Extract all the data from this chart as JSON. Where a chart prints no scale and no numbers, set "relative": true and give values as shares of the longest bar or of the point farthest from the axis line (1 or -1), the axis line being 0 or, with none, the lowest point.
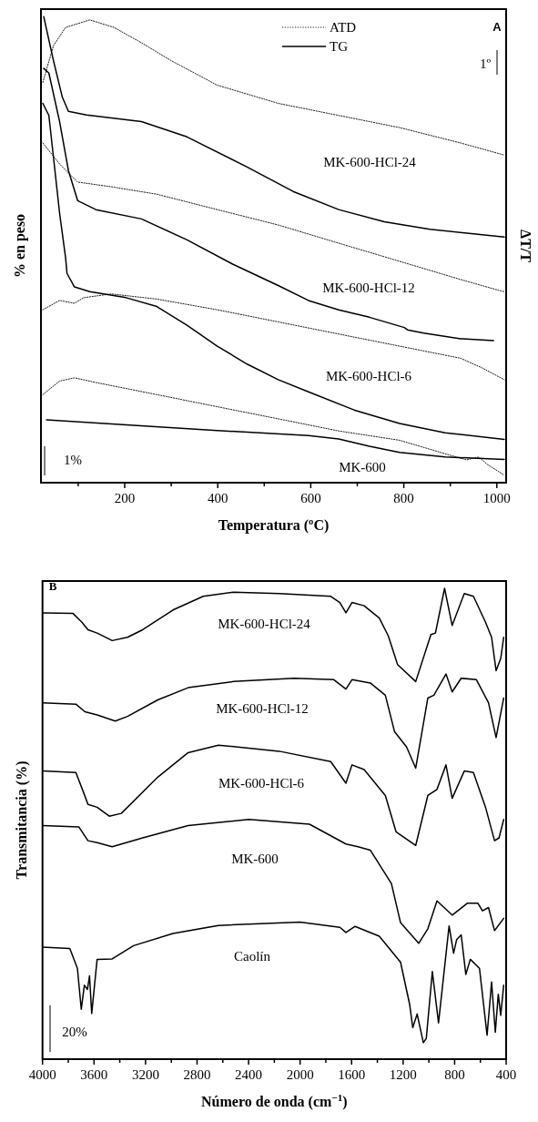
{
  "chart_data": [
    {
      "type": "line",
      "xlabel": "Temperatura (ºC)",
      "ylabel": "% en peso",
      "y2label": "ΔT/T",
      "relative": true,
      "legend": "top",
      "xlim": [
        20,
        1020
      ],
      "xticks": [
        {
          "value": 100,
          "label": null
        },
        200,
        {
          "value": 300,
          "label": null
        },
        400,
        {
          "value": 500,
          "label": null
        },
        600,
        {
          "value": 700,
          "label": null
        },
        800,
        {
          "value": 900,
          "label": null
        },
        1000
      ],
      "series": [
        {
          "name": "ATD",
          "color": "#000000",
          "line_style": "dotted",
          "x": [
            24,
            47,
            73,
            125,
            177,
            236,
            301,
            399,
            530,
            660,
            791,
            922,
            1016
          ],
          "values": [
            0.859,
            0.938,
            0.977,
            0.993,
            0.977,
            0.944,
            0.905,
            0.853,
            0.814,
            0.788,
            0.762,
            0.729,
            0.703
          ]
        },
        {
          "name": "TG",
          "color": "#000000",
          "line_style": "solid",
          "x": [
            26,
            47,
            66,
            79,
            118,
            236,
            334,
            464,
            562,
            660,
            758,
            856,
            1016
          ],
          "values": [
            1.0,
            0.905,
            0.827,
            0.797,
            0.789,
            0.775,
            0.742,
            0.677,
            0.625,
            0.586,
            0.56,
            0.544,
            0.527
          ]
        },
        {
          "color": "#000000",
          "line_style": "dotted",
          "x": [
            24,
            60,
            99,
            171,
            269,
            399,
            530,
            660,
            791,
            922,
            1003,
            1016
          ],
          "values": [
            0.729,
            0.684,
            0.645,
            0.635,
            0.619,
            0.586,
            0.553,
            0.514,
            0.475,
            0.436,
            0.413,
            0.41
          ]
        },
        {
          "color": "#000000",
          "line_style": "solid",
          "x": [
            26,
            37,
            60,
            79,
            99,
            138,
            236,
            334,
            432,
            530,
            595,
            660,
            726,
            801,
            808,
            843,
            922,
            993
          ],
          "values": [
            0.889,
            0.879,
            0.775,
            0.67,
            0.605,
            0.586,
            0.566,
            0.521,
            0.469,
            0.423,
            0.391,
            0.371,
            0.355,
            0.333,
            0.328,
            0.321,
            0.309,
            0.305
          ]
        },
        {
          "color": "#000000",
          "line_style": "dotted",
          "x": [
            24,
            60,
            92,
            112,
            171,
            269,
            399,
            530,
            660,
            791,
            922,
            967,
            1016
          ],
          "values": [
            0.371,
            0.391,
            0.385,
            0.397,
            0.405,
            0.394,
            0.371,
            0.345,
            0.319,
            0.293,
            0.267,
            0.247,
            0.221
          ]
        },
        {
          "color": "#000000",
          "line_style": "solid",
          "x": [
            24,
            37,
            60,
            73,
            76,
            92,
            125,
            203,
            269,
            334,
            399,
            464,
            530,
            595,
            693,
            791,
            889,
            1016
          ],
          "values": [
            0.814,
            0.788,
            0.579,
            0.482,
            0.449,
            0.42,
            0.41,
            0.397,
            0.378,
            0.338,
            0.293,
            0.254,
            0.221,
            0.195,
            0.156,
            0.127,
            0.107,
            0.093
          ]
        },
        {
          "color": "#000000",
          "line_style": "dotted",
          "x": [
            24,
            60,
            92,
            138,
            269,
            399,
            530,
            660,
            791,
            889,
            935,
            961,
            980,
            1016
          ],
          "values": [
            0.189,
            0.218,
            0.225,
            0.215,
            0.189,
            0.163,
            0.137,
            0.111,
            0.091,
            0.062,
            0.049,
            0.055,
            0.039,
            0.016
          ]
        },
        {
          "color": "#000000",
          "line_style": "solid",
          "x": [
            32,
            203,
            399,
            595,
            660,
            726,
            791,
            889,
            1016
          ],
          "values": [
            0.135,
            0.124,
            0.112,
            0.101,
            0.094,
            0.078,
            0.065,
            0.055,
            0.05
          ]
        }
      ],
      "annotations": [
        "A",
        "1º",
        "MK-600-HCl-24",
        "MK-600-HCl-12",
        "MK-600-HCl-6",
        "MK-600",
        "1%"
      ]
    },
    {
      "type": "line",
      "xlabel": "Número de onda (cm$^{−1}$)",
      "ylabel": "Transmitancia (%)",
      "relative": true,
      "xlim": [
        4000,
        400
      ],
      "xticks": [
        4000,
        {
          "value": 3800,
          "label": null
        },
        3600,
        {
          "value": 3400,
          "label": null
        },
        3200,
        {
          "value": 3000,
          "label": null
        },
        2800,
        {
          "value": 2600,
          "label": null
        },
        2400,
        {
          "value": 2200,
          "label": null
        },
        2000,
        {
          "value": 1800,
          "label": null
        },
        1600,
        {
          "value": 1400,
          "label": null
        },
        1200,
        {
          "value": 1000,
          "label": null
        },
        800,
        {
          "value": 600,
          "label": null
        },
        400
      ],
      "series": [
        {
          "color": "#000000",
          "x": [
            4000,
            3765,
            3694,
            3647,
            3576,
            3459,
            3340,
            3222,
            2987,
            2752,
            2516,
            2162,
            1762,
            1691,
            1644,
            1597,
            1503,
            1385,
            1315,
            1243,
            1102,
            984,
            949,
            878,
            819,
            725,
            654,
            560,
            513,
            478,
            442,
            419
          ],
          "values": [
            0.948,
            0.947,
            0.928,
            0.912,
            0.905,
            0.889,
            0.896,
            0.912,
            0.954,
            0.983,
            0.992,
            0.989,
            0.983,
            0.97,
            0.948,
            0.97,
            0.963,
            0.937,
            0.899,
            0.838,
            0.802,
            0.902,
            0.905,
            1.0,
            0.921,
            0.989,
            0.983,
            0.928,
            0.896,
            0.825,
            0.851,
            0.896
          ]
        },
        {
          "color": "#000000",
          "x": [
            4000,
            3741,
            3671,
            3576,
            3435,
            3340,
            3105,
            2869,
            2516,
            2045,
            1738,
            1644,
            1597,
            1455,
            1338,
            1267,
            1173,
            1102,
            1008,
            961,
            867,
            819,
            749,
            631,
            537,
            478,
            419
          ],
          "values": [
            0.757,
            0.754,
            0.738,
            0.731,
            0.718,
            0.728,
            0.763,
            0.789,
            0.802,
            0.809,
            0.806,
            0.786,
            0.806,
            0.799,
            0.773,
            0.696,
            0.663,
            0.618,
            0.767,
            0.773,
            0.818,
            0.78,
            0.809,
            0.806,
            0.757,
            0.683,
            0.767
          ]
        },
        {
          "color": "#000000",
          "x": [
            4000,
            3741,
            3682,
            3647,
            3576,
            3482,
            3388,
            3105,
            2869,
            2634,
            2162,
            1762,
            1644,
            1597,
            1503,
            1338,
            1255,
            1102,
            1008,
            937,
            867,
            819,
            725,
            654,
            560,
            490,
            455,
            419
          ],
          "values": [
            0.612,
            0.609,
            0.567,
            0.541,
            0.535,
            0.516,
            0.522,
            0.599,
            0.651,
            0.667,
            0.654,
            0.632,
            0.586,
            0.625,
            0.615,
            0.56,
            0.483,
            0.454,
            0.56,
            0.573,
            0.625,
            0.554,
            0.612,
            0.609,
            0.535,
            0.464,
            0.47,
            0.509
          ]
        },
        {
          "color": "#000000",
          "x": [
            4000,
            3717,
            3647,
            3576,
            3459,
            3222,
            2869,
            2398,
            1927,
            1644,
            1550,
            1455,
            1291,
            1220,
            1079,
            1008,
            937,
            819,
            702,
            619,
            584,
            537,
            490,
            419
          ],
          "values": [
            0.496,
            0.493,
            0.464,
            0.46,
            0.451,
            0.47,
            0.496,
            0.509,
            0.499,
            0.457,
            0.451,
            0.444,
            0.373,
            0.29,
            0.246,
            0.277,
            0.336,
            0.306,
            0.331,
            0.331,
            0.315,
            0.322,
            0.273,
            0.299
          ]
        },
        {
          "color": "#000000",
          "x": [
            4000,
            3788,
            3729,
            3699,
            3675,
            3651,
            3635,
            3618,
            3576,
            3459,
            3293,
            2987,
            2634,
            2000,
            1691,
            1644,
            1573,
            1385,
            1220,
            1149,
            1125,
            1091,
            1043,
            1020,
            973,
            925,
            843,
            808,
            784,
            749,
            713,
            678,
            607,
            548,
            513,
            484,
            461,
            442,
            419
          ],
          "values": [
            0.238,
            0.235,
            0.193,
            0.106,
            0.157,
            0.148,
            0.177,
            0.097,
            0.212,
            0.213,
            0.241,
            0.267,
            0.284,
            0.291,
            0.28,
            0.269,
            0.282,
            0.261,
            0.206,
            0.116,
            0.067,
            0.096,
            0.035,
            0.044,
            0.186,
            0.077,
            0.283,
            0.225,
            0.254,
            0.264,
            0.18,
            0.212,
            0.193,
            0.051,
            0.164,
            0.057,
            0.138,
            0.093,
            0.157
          ]
        }
      ],
      "annotations": [
        "B",
        "MK-600-HCl-24",
        "MK-600-HCl-12",
        "MK-600-HCl-6",
        "MK-600",
        "Caolín",
        "20%"
      ]
    }
  ]
}
